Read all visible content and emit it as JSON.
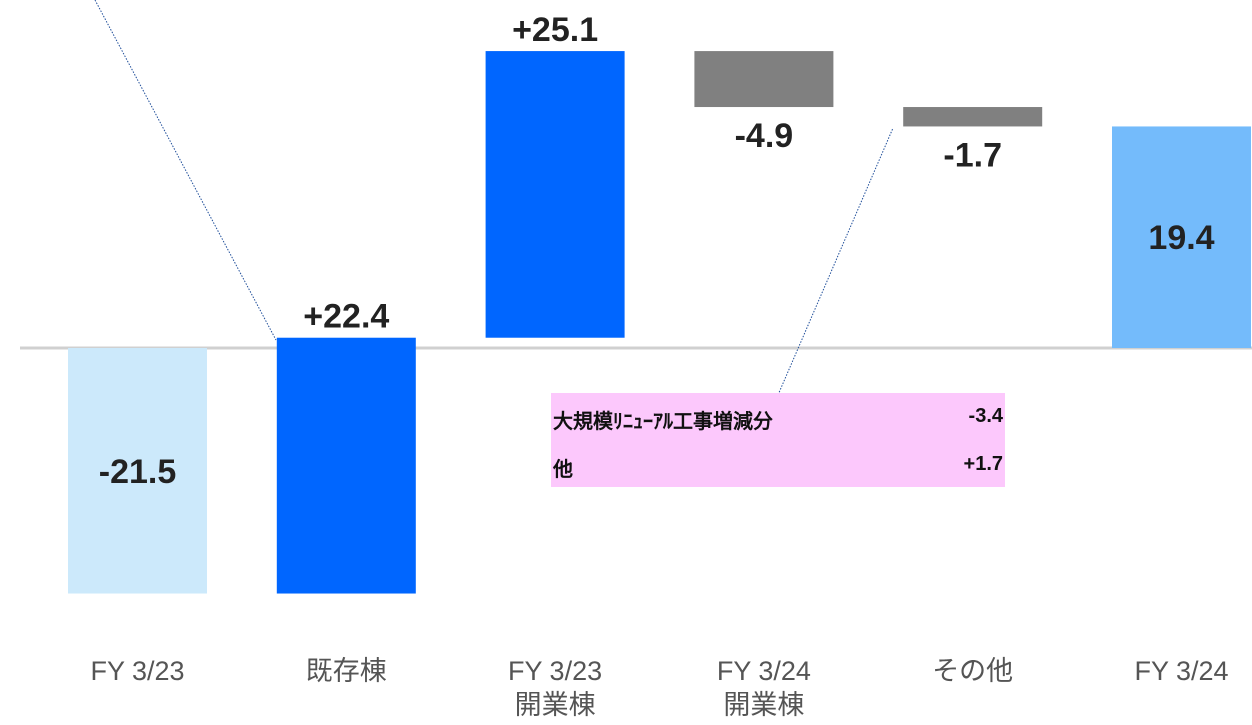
{
  "chart_data": {
    "type": "waterfall",
    "categories": [
      "FY 3/23",
      "既存棟",
      "FY 3/23\n開業棟",
      "FY 3/24\n開業棟",
      "その他",
      "FY 3/24"
    ],
    "values": [
      -21.5,
      22.4,
      25.1,
      -4.9,
      -1.7,
      19.4
    ],
    "value_labels": [
      "-21.5",
      "+22.4",
      "+25.1",
      "-4.9",
      "-1.7",
      "19.4"
    ],
    "is_total": [
      true,
      false,
      false,
      false,
      false,
      true
    ],
    "colors": [
      "#cce9fb",
      "#0066ff",
      "#0066ff",
      "#808080",
      "#808080",
      "#74bbfb"
    ],
    "annotation": {
      "rows": [
        [
          "大規模ﾘﾆｭｰｱﾙ工事増減分",
          "-3.4"
        ],
        [
          "他",
          "+1.7"
        ]
      ]
    }
  }
}
